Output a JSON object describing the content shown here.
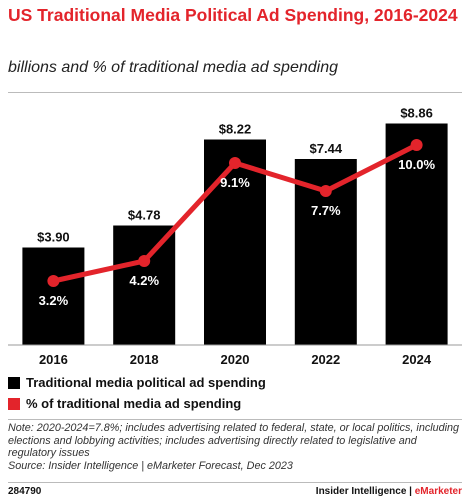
{
  "title": "US Traditional Media Political Ad Spending, 2016-2024",
  "subtitle": "billions and % of traditional media ad spending",
  "chart_data": {
    "type": "bar",
    "categories": [
      "2016",
      "2018",
      "2020",
      "2022",
      "2024"
    ],
    "series": [
      {
        "name": "Traditional media political ad spending",
        "type": "bar",
        "values": [
          3.9,
          4.78,
          8.22,
          7.44,
          8.86
        ],
        "labels": [
          "$3.90",
          "$4.78",
          "$8.22",
          "$7.44",
          "$8.86"
        ],
        "color": "#000000"
      },
      {
        "name": "% of traditional media ad spending",
        "type": "line",
        "values": [
          3.2,
          4.2,
          9.1,
          7.7,
          10.0
        ],
        "labels": [
          "3.2%",
          "4.2%",
          "9.1%",
          "7.7%",
          "10.0%"
        ],
        "color": "#e3242b"
      }
    ],
    "bar_ylim": [
      0,
      10
    ],
    "line_ylim": [
      0,
      12.5
    ],
    "grid": false,
    "legend_position": "bottom-left"
  },
  "notes": {
    "note": "Note: 2020-2024=7.8%; includes advertising related to federal, state, or local politics, including elections and lobbying activities; includes advertising directly related to legislative and regulatory issues",
    "source": "Source: Insider Intelligence | eMarketer Forecast, Dec 2023"
  },
  "footer": {
    "id": "284790",
    "brand_main": "Insider Intelligence | ",
    "brand_accent": "eMarketer"
  },
  "colors": {
    "accent": "#e3242b",
    "bar": "#000000"
  }
}
